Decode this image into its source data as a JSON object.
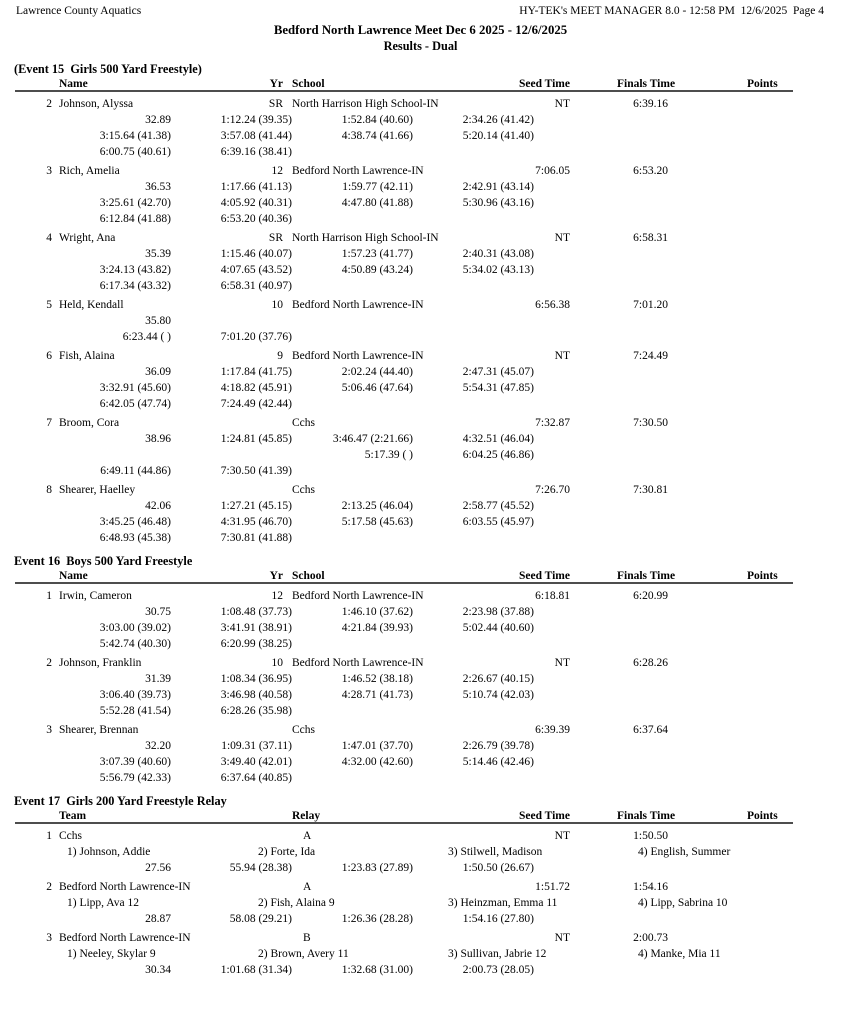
{
  "colors": {
    "background": "#ffffff",
    "text": "#000000",
    "header_rule": "#4d4d4d"
  },
  "page_header": {
    "left": "Lawrence County Aquatics",
    "right": "HY-TEK's MEET MANAGER 8.0 - 12:58 PM  12/6/2025  Page 4",
    "title": "Bedford North Lawrence Meet Dec 6 2025 - 12/6/2025",
    "subtitle": "Results - Dual"
  },
  "events": [
    {
      "title": "(Event 15  Girls 500 Yard Freestyle)",
      "kind": "individual",
      "headers": {
        "col1": "Name",
        "col2": "Yr",
        "col3": "School",
        "seed": "Seed Time",
        "finals": "Finals Time",
        "points": "Points"
      },
      "entries": [
        {
          "place": "2",
          "name": "Johnson, Alyssa",
          "yr": "SR",
          "school": "North Harrison High School-IN",
          "seed": "NT",
          "finals": "6:39.16",
          "points": "",
          "splits": [
            [
              "32.89",
              "1:12.24 (39.35)",
              "1:52.84 (40.60)",
              "2:34.26 (41.42)"
            ],
            [
              "3:15.64 (41.38)",
              "3:57.08 (41.44)",
              "4:38.74 (41.66)",
              "5:20.14 (41.40)"
            ],
            [
              "6:00.75 (40.61)",
              "6:39.16 (38.41)",
              "",
              ""
            ]
          ]
        },
        {
          "place": "3",
          "name": "Rich, Amelia",
          "yr": "12",
          "school": "Bedford North Lawrence-IN",
          "seed": "7:06.05",
          "finals": "6:53.20",
          "points": "",
          "splits": [
            [
              "36.53",
              "1:17.66 (41.13)",
              "1:59.77 (42.11)",
              "2:42.91 (43.14)"
            ],
            [
              "3:25.61 (42.70)",
              "4:05.92 (40.31)",
              "4:47.80 (41.88)",
              "5:30.96 (43.16)"
            ],
            [
              "6:12.84 (41.88)",
              "6:53.20 (40.36)",
              "",
              ""
            ]
          ]
        },
        {
          "place": "4",
          "name": "Wright, Ana",
          "yr": "SR",
          "school": "North Harrison High School-IN",
          "seed": "NT",
          "finals": "6:58.31",
          "points": "",
          "splits": [
            [
              "35.39",
              "1:15.46 (40.07)",
              "1:57.23 (41.77)",
              "2:40.31 (43.08)"
            ],
            [
              "3:24.13 (43.82)",
              "4:07.65 (43.52)",
              "4:50.89 (43.24)",
              "5:34.02 (43.13)"
            ],
            [
              "6:17.34 (43.32)",
              "6:58.31 (40.97)",
              "",
              ""
            ]
          ]
        },
        {
          "place": "5",
          "name": "Held, Kendall",
          "yr": "10",
          "school": "Bedford North Lawrence-IN",
          "seed": "6:56.38",
          "finals": "7:01.20",
          "points": "",
          "splits": [
            [
              "35.80",
              "",
              "",
              ""
            ],
            [
              "6:23.44 ( )",
              "7:01.20 (37.76)",
              "",
              ""
            ]
          ]
        },
        {
          "place": "6",
          "name": "Fish, Alaina",
          "yr": "9",
          "school": "Bedford North Lawrence-IN",
          "seed": "NT",
          "finals": "7:24.49",
          "points": "",
          "splits": [
            [
              "36.09",
              "1:17.84 (41.75)",
              "2:02.24 (44.40)",
              "2:47.31 (45.07)"
            ],
            [
              "3:32.91 (45.60)",
              "4:18.82 (45.91)",
              "5:06.46 (47.64)",
              "5:54.31 (47.85)"
            ],
            [
              "6:42.05 (47.74)",
              "7:24.49 (42.44)",
              "",
              ""
            ]
          ]
        },
        {
          "place": "7",
          "name": "Broom, Cora",
          "yr": "",
          "school": "Cchs",
          "seed": "7:32.87",
          "finals": "7:30.50",
          "points": "",
          "splits": [
            [
              "38.96",
              "1:24.81 (45.85)",
              "3:46.47 (2:21.66)",
              "4:32.51 (46.04)"
            ],
            [
              "",
              "",
              "5:17.39 ( )",
              "6:04.25 (46.86)"
            ],
            [
              "6:49.11 (44.86)",
              "7:30.50 (41.39)",
              "",
              ""
            ]
          ]
        },
        {
          "place": "8",
          "name": "Shearer, Haelley",
          "yr": "",
          "school": "Cchs",
          "seed": "7:26.70",
          "finals": "7:30.81",
          "points": "",
          "splits": [
            [
              "42.06",
              "1:27.21 (45.15)",
              "2:13.25 (46.04)",
              "2:58.77 (45.52)"
            ],
            [
              "3:45.25 (46.48)",
              "4:31.95 (46.70)",
              "5:17.58 (45.63)",
              "6:03.55 (45.97)"
            ],
            [
              "6:48.93 (45.38)",
              "7:30.81 (41.88)",
              "",
              ""
            ]
          ]
        }
      ]
    },
    {
      "title": "Event 16  Boys 500 Yard Freestyle",
      "kind": "individual",
      "headers": {
        "col1": "Name",
        "col2": "Yr",
        "col3": "School",
        "seed": "Seed Time",
        "finals": "Finals Time",
        "points": "Points"
      },
      "entries": [
        {
          "place": "1",
          "name": "Irwin, Cameron",
          "yr": "12",
          "school": "Bedford North Lawrence-IN",
          "seed": "6:18.81",
          "finals": "6:20.99",
          "points": "",
          "splits": [
            [
              "30.75",
              "1:08.48 (37.73)",
              "1:46.10 (37.62)",
              "2:23.98 (37.88)"
            ],
            [
              "3:03.00 (39.02)",
              "3:41.91 (38.91)",
              "4:21.84 (39.93)",
              "5:02.44 (40.60)"
            ],
            [
              "5:42.74 (40.30)",
              "6:20.99 (38.25)",
              "",
              ""
            ]
          ]
        },
        {
          "place": "2",
          "name": "Johnson, Franklin",
          "yr": "10",
          "school": "Bedford North Lawrence-IN",
          "seed": "NT",
          "finals": "6:28.26",
          "points": "",
          "splits": [
            [
              "31.39",
              "1:08.34 (36.95)",
              "1:46.52 (38.18)",
              "2:26.67 (40.15)"
            ],
            [
              "3:06.40 (39.73)",
              "3:46.98 (40.58)",
              "4:28.71 (41.73)",
              "5:10.74 (42.03)"
            ],
            [
              "5:52.28 (41.54)",
              "6:28.26 (35.98)",
              "",
              ""
            ]
          ]
        },
        {
          "place": "3",
          "name": "Shearer, Brennan",
          "yr": "",
          "school": "Cchs",
          "seed": "6:39.39",
          "finals": "6:37.64",
          "points": "",
          "splits": [
            [
              "32.20",
              "1:09.31 (37.11)",
              "1:47.01 (37.70)",
              "2:26.79 (39.78)"
            ],
            [
              "3:07.39 (40.60)",
              "3:49.40 (42.01)",
              "4:32.00 (42.60)",
              "5:14.46 (42.46)"
            ],
            [
              "5:56.79 (42.33)",
              "6:37.64 (40.85)",
              "",
              ""
            ]
          ]
        }
      ]
    },
    {
      "title": "Event 17  Girls 200 Yard Freestyle Relay",
      "kind": "relay",
      "headers": {
        "col1": "Team",
        "col3": "Relay",
        "seed": "Seed Time",
        "finals": "Finals Time",
        "points": "Points"
      },
      "entries": [
        {
          "place": "1",
          "name": "Cchs",
          "relay": "A",
          "seed": "NT",
          "finals": "1:50.50",
          "points": "",
          "swimmers": [
            "1) Johnson, Addie",
            "2) Forte, Ida",
            "3) Stilwell, Madison",
            "4) English, Summer"
          ],
          "splits": [
            [
              "27.56",
              "55.94 (28.38)",
              "1:23.83 (27.89)",
              "1:50.50 (26.67)"
            ]
          ]
        },
        {
          "place": "2",
          "name": "Bedford North Lawrence-IN",
          "relay": "A",
          "seed": "1:51.72",
          "finals": "1:54.16",
          "points": "",
          "swimmers": [
            "1) Lipp, Ava 12",
            "2) Fish, Alaina 9",
            "3) Heinzman, Emma 11",
            "4) Lipp, Sabrina 10"
          ],
          "splits": [
            [
              "28.87",
              "58.08 (29.21)",
              "1:26.36 (28.28)",
              "1:54.16 (27.80)"
            ]
          ]
        },
        {
          "place": "3",
          "name": "Bedford North Lawrence-IN",
          "relay": "B",
          "seed": "NT",
          "finals": "2:00.73",
          "points": "",
          "swimmers": [
            "1) Neeley, Skylar 9",
            "2) Brown, Avery 11",
            "3) Sullivan, Jabrie 12",
            "4) Manke, Mia 11"
          ],
          "splits": [
            [
              "30.34",
              "1:01.68 (31.34)",
              "1:32.68 (31.00)",
              "2:00.73 (28.05)"
            ]
          ]
        }
      ]
    }
  ]
}
